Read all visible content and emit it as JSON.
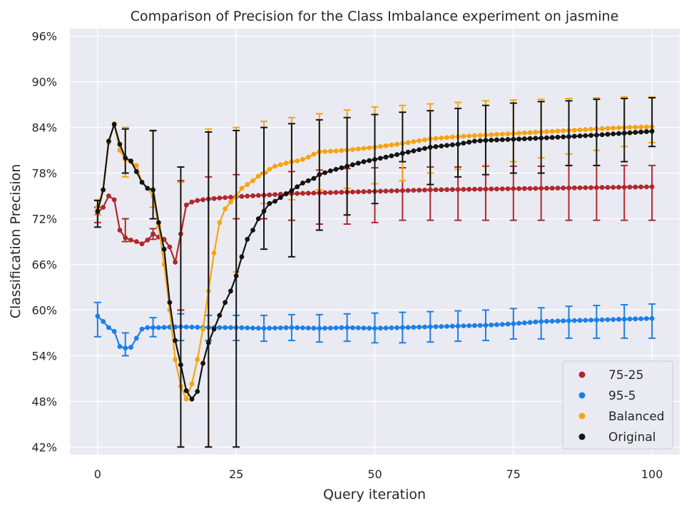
{
  "chart_data": {
    "type": "line",
    "title": "Comparison of Precision for the Class Imbalance experiment on jasmine",
    "xlabel": "Query iteration",
    "ylabel": "Classification Precision",
    "xlim": [
      -5,
      105
    ],
    "ylim": [
      41,
      97
    ],
    "x_ticks": [
      0,
      25,
      50,
      75,
      100
    ],
    "x_tick_labels": [
      "0",
      "25",
      "50",
      "75",
      "100"
    ],
    "y_ticks": [
      42,
      48,
      54,
      60,
      66,
      72,
      78,
      84,
      90,
      96
    ],
    "y_tick_labels": [
      "42%",
      "48%",
      "54%",
      "60%",
      "66%",
      "72%",
      "78%",
      "84%",
      "90%",
      "96%"
    ],
    "grid": true,
    "legend_position": "lower-right",
    "series": [
      {
        "name": "75-25",
        "color": "#b0282d",
        "anchors": [
          [
            0,
            72.8
          ],
          [
            1,
            73.5
          ],
          [
            2,
            75
          ],
          [
            3,
            74.5
          ],
          [
            4,
            70.5
          ],
          [
            5,
            69.5
          ],
          [
            6,
            69.2
          ],
          [
            7,
            69
          ],
          [
            8,
            68.7
          ],
          [
            9,
            69.2
          ],
          [
            10,
            70
          ],
          [
            11,
            69.6
          ],
          [
            12,
            69.3
          ],
          [
            13,
            68.3
          ],
          [
            14,
            66.3
          ],
          [
            15,
            70
          ],
          [
            16,
            73.8
          ],
          [
            17,
            74.2
          ],
          [
            18,
            74.4
          ],
          [
            20,
            74.6
          ],
          [
            25,
            74.9
          ],
          [
            30,
            75.1
          ],
          [
            35,
            75.3
          ],
          [
            40,
            75.4
          ],
          [
            50,
            75.6
          ],
          [
            60,
            75.8
          ],
          [
            70,
            75.9
          ],
          [
            80,
            76
          ],
          [
            90,
            76.1
          ],
          [
            100,
            76.2
          ]
        ],
        "errorbars": [
          [
            0,
            72.8,
            73.5,
            71.5
          ],
          [
            5,
            69.5,
            72,
            69
          ],
          [
            10,
            70,
            70.7,
            69.3
          ],
          [
            15,
            70,
            77,
            60
          ],
          [
            20,
            74.6,
            77.5,
            42
          ],
          [
            25,
            74.9,
            77.8,
            72
          ],
          [
            30,
            75.1,
            78,
            72
          ],
          [
            35,
            75.3,
            78.2,
            71.8
          ],
          [
            40,
            75.4,
            78.4,
            71.3
          ],
          [
            45,
            75.5,
            78.6,
            71.3
          ],
          [
            50,
            75.6,
            78.7,
            71.5
          ],
          [
            55,
            75.7,
            78.7,
            71.8
          ],
          [
            60,
            75.8,
            78.8,
            71.8
          ],
          [
            65,
            75.8,
            78.8,
            71.8
          ],
          [
            70,
            75.9,
            78.9,
            71.8
          ],
          [
            75,
            76,
            78.9,
            71.8
          ],
          [
            80,
            76,
            78.9,
            71.8
          ],
          [
            85,
            76,
            79,
            71.8
          ],
          [
            90,
            76.1,
            79,
            71.8
          ],
          [
            95,
            76.1,
            79,
            71.8
          ],
          [
            100,
            76.2,
            79,
            71.8
          ]
        ]
      },
      {
        "name": "95-5",
        "color": "#1a80e8",
        "anchors": [
          [
            0,
            59.2
          ],
          [
            1,
            58.5
          ],
          [
            2,
            57.7
          ],
          [
            3,
            57.2
          ],
          [
            4,
            55.2
          ],
          [
            5,
            55
          ],
          [
            6,
            55.1
          ],
          [
            7,
            56.3
          ],
          [
            8,
            57.5
          ],
          [
            9,
            57.7
          ],
          [
            11,
            57.7
          ],
          [
            15,
            57.8
          ],
          [
            20,
            57.7
          ],
          [
            25,
            57.7
          ],
          [
            30,
            57.6
          ],
          [
            35,
            57.7
          ],
          [
            40,
            57.6
          ],
          [
            45,
            57.7
          ],
          [
            50,
            57.6
          ],
          [
            55,
            57.7
          ],
          [
            60,
            57.8
          ],
          [
            65,
            57.9
          ],
          [
            70,
            58
          ],
          [
            75,
            58.2
          ],
          [
            80,
            58.5
          ],
          [
            85,
            58.6
          ],
          [
            90,
            58.7
          ],
          [
            95,
            58.8
          ],
          [
            100,
            58.9
          ]
        ],
        "errorbars": [
          [
            0,
            59.2,
            61,
            56.5
          ],
          [
            5,
            55,
            57,
            54
          ],
          [
            10,
            57.7,
            59,
            56.5
          ],
          [
            15,
            57.8,
            59.5,
            56
          ],
          [
            20,
            57.7,
            59.3,
            56
          ],
          [
            25,
            57.7,
            59.3,
            56
          ],
          [
            30,
            57.6,
            59.3,
            55.9
          ],
          [
            35,
            57.7,
            59.4,
            56
          ],
          [
            40,
            57.6,
            59.4,
            55.8
          ],
          [
            45,
            57.7,
            59.5,
            55.9
          ],
          [
            50,
            57.6,
            59.6,
            55.7
          ],
          [
            55,
            57.7,
            59.7,
            55.7
          ],
          [
            60,
            57.8,
            59.8,
            55.8
          ],
          [
            65,
            57.9,
            59.9,
            55.9
          ],
          [
            70,
            58,
            60,
            56
          ],
          [
            75,
            58.2,
            60.2,
            56.2
          ],
          [
            80,
            58.5,
            60.3,
            56.2
          ],
          [
            85,
            58.6,
            60.5,
            56.3
          ],
          [
            90,
            58.7,
            60.6,
            56.3
          ],
          [
            95,
            58.8,
            60.7,
            56.3
          ],
          [
            100,
            58.9,
            60.8,
            56.3
          ]
        ]
      },
      {
        "name": "Balanced",
        "color": "#f5a511",
        "anchors": [
          [
            0,
            73.5
          ],
          [
            1,
            75.8
          ],
          [
            2,
            82
          ],
          [
            3,
            84.5
          ],
          [
            4,
            81
          ],
          [
            5,
            79.8
          ],
          [
            6,
            79.5
          ],
          [
            7,
            79
          ],
          [
            8,
            76.8
          ],
          [
            9,
            76
          ],
          [
            10,
            75
          ],
          [
            11,
            71
          ],
          [
            12,
            66
          ],
          [
            13,
            60
          ],
          [
            14,
            53.5
          ],
          [
            15,
            50
          ],
          [
            16,
            48.3
          ],
          [
            17,
            50.3
          ],
          [
            18,
            53.5
          ],
          [
            19,
            57.5
          ],
          [
            20,
            62.5
          ],
          [
            21,
            67.5
          ],
          [
            22,
            71.5
          ],
          [
            23,
            73.3
          ],
          [
            24,
            74.2
          ],
          [
            25,
            75
          ],
          [
            26,
            76
          ],
          [
            27,
            76.5
          ],
          [
            28,
            77
          ],
          [
            29,
            77.6
          ],
          [
            30,
            78
          ],
          [
            31,
            78.5
          ],
          [
            32,
            78.9
          ],
          [
            33,
            79.1
          ],
          [
            34,
            79.3
          ],
          [
            35,
            79.5
          ],
          [
            36,
            79.6
          ],
          [
            37,
            79.8
          ],
          [
            38,
            80.1
          ],
          [
            39,
            80.5
          ],
          [
            40,
            80.8
          ],
          [
            43,
            80.9
          ],
          [
            46,
            81.1
          ],
          [
            50,
            81.4
          ],
          [
            55,
            81.9
          ],
          [
            60,
            82.5
          ],
          [
            65,
            82.8
          ],
          [
            70,
            83
          ],
          [
            75,
            83.2
          ],
          [
            80,
            83.4
          ],
          [
            85,
            83.6
          ],
          [
            90,
            83.8
          ],
          [
            95,
            84
          ],
          [
            100,
            84.1
          ]
        ],
        "errorbars": [
          [
            0,
            73.5,
            74.5,
            72.5
          ],
          [
            5,
            79.8,
            84,
            77.5
          ],
          [
            10,
            75,
            83.5,
            73.5
          ],
          [
            15,
            50,
            76.8,
            42
          ],
          [
            20,
            62.5,
            83.8,
            42
          ],
          [
            25,
            75,
            84,
            65
          ],
          [
            30,
            78,
            84.8,
            74
          ],
          [
            35,
            79.5,
            85.3,
            74.5
          ],
          [
            40,
            80.8,
            85.8,
            75.8
          ],
          [
            45,
            81,
            86.3,
            76
          ],
          [
            50,
            81.4,
            86.7,
            76.6
          ],
          [
            55,
            81.9,
            86.9,
            77
          ],
          [
            60,
            82.5,
            87.1,
            78
          ],
          [
            65,
            82.8,
            87.3,
            78.5
          ],
          [
            70,
            83,
            87.5,
            79
          ],
          [
            75,
            83.2,
            87.6,
            79.5
          ],
          [
            80,
            83.4,
            87.7,
            80
          ],
          [
            85,
            83.6,
            87.8,
            80.5
          ],
          [
            90,
            83.8,
            87.9,
            81
          ],
          [
            95,
            84,
            88,
            81.5
          ],
          [
            100,
            84.1,
            88,
            82
          ]
        ]
      },
      {
        "name": "Original",
        "color": "#141414",
        "anchors": [
          [
            0,
            73
          ],
          [
            1,
            75.8
          ],
          [
            2,
            82.2
          ],
          [
            3,
            84.4
          ],
          [
            4,
            81.8
          ],
          [
            5,
            80
          ],
          [
            6,
            79.6
          ],
          [
            7,
            78.2
          ],
          [
            8,
            76.8
          ],
          [
            9,
            76
          ],
          [
            10,
            75.8
          ],
          [
            11,
            71.5
          ],
          [
            12,
            68
          ],
          [
            13,
            61
          ],
          [
            14,
            56
          ],
          [
            15,
            52.8
          ],
          [
            16,
            49.4
          ],
          [
            17,
            48.3
          ],
          [
            18,
            49.3
          ],
          [
            19,
            53
          ],
          [
            20,
            55.7
          ],
          [
            21,
            57.5
          ],
          [
            22,
            59.3
          ],
          [
            23,
            61
          ],
          [
            24,
            62.5
          ],
          [
            25,
            64.5
          ],
          [
            26,
            67
          ],
          [
            27,
            69.3
          ],
          [
            28,
            70.5
          ],
          [
            29,
            72
          ],
          [
            30,
            73
          ],
          [
            31,
            74
          ],
          [
            32,
            74.3
          ],
          [
            33,
            74.8
          ],
          [
            34,
            75.3
          ],
          [
            35,
            75.7
          ],
          [
            36,
            76.2
          ],
          [
            37,
            76.7
          ],
          [
            38,
            77
          ],
          [
            39,
            77.3
          ],
          [
            40,
            77.8
          ],
          [
            42,
            78.3
          ],
          [
            44,
            78.7
          ],
          [
            46,
            79.1
          ],
          [
            48,
            79.5
          ],
          [
            50,
            79.8
          ],
          [
            52,
            80.1
          ],
          [
            55,
            80.6
          ],
          [
            60,
            81.4
          ],
          [
            65,
            81.8
          ],
          [
            68,
            82.2
          ],
          [
            70,
            82.3
          ],
          [
            80,
            82.6
          ],
          [
            90,
            83
          ],
          [
            100,
            83.5
          ]
        ],
        "errorbars": [
          [
            0,
            73,
            74.4,
            70.9
          ],
          [
            5,
            80,
            83.8,
            78
          ],
          [
            10,
            75.8,
            83.6,
            72
          ],
          [
            15,
            52.8,
            78.8,
            42
          ],
          [
            20,
            55.7,
            83.4,
            42
          ],
          [
            25,
            64.5,
            83.6,
            42
          ],
          [
            30,
            73,
            84,
            68
          ],
          [
            35,
            75.7,
            84.5,
            67
          ],
          [
            40,
            77.8,
            85,
            70.5
          ],
          [
            45,
            79,
            85.3,
            72.5
          ],
          [
            50,
            79.8,
            85.7,
            74
          ],
          [
            55,
            80.6,
            86,
            79.5
          ],
          [
            60,
            81.4,
            86.2,
            76.5
          ],
          [
            65,
            81.8,
            86.5,
            77.5
          ],
          [
            70,
            82.3,
            86.9,
            77.8
          ],
          [
            75,
            82.5,
            87.2,
            78
          ],
          [
            80,
            82.6,
            87.4,
            78
          ],
          [
            85,
            82.9,
            87.5,
            79
          ],
          [
            90,
            83,
            87.7,
            79
          ],
          [
            95,
            83.3,
            87.8,
            79.5
          ],
          [
            100,
            83.5,
            87.9,
            81.5
          ]
        ]
      }
    ]
  }
}
